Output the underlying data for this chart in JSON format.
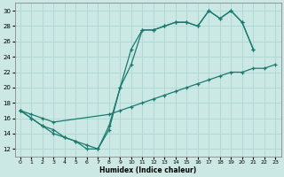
{
  "background_color": "#cce8e4",
  "grid_color": "#b0d8d4",
  "line_color": "#1a7a6e",
  "xlabel": "Humidex (Indice chaleur)",
  "xlim": [
    -0.5,
    23.5
  ],
  "ylim": [
    11,
    31
  ],
  "yticks": [
    12,
    14,
    16,
    18,
    20,
    22,
    24,
    26,
    28,
    30
  ],
  "xticks": [
    0,
    1,
    2,
    3,
    4,
    5,
    6,
    7,
    8,
    9,
    10,
    11,
    12,
    13,
    14,
    15,
    16,
    17,
    18,
    19,
    20,
    21,
    22,
    23
  ],
  "curves": [
    {
      "x": [
        0,
        1,
        2,
        3,
        4,
        5,
        6,
        7,
        8,
        9,
        10,
        11,
        12,
        13,
        14,
        15,
        16,
        17,
        18,
        19,
        20,
        21
      ],
      "y": [
        17,
        16,
        15,
        14,
        13.5,
        13,
        12,
        12,
        14.5,
        20,
        25,
        27.5,
        27.5,
        28,
        28.5,
        28.5,
        28,
        30,
        29,
        30,
        28.5,
        25
      ]
    },
    {
      "x": [
        0,
        1,
        2,
        3,
        4,
        5,
        6,
        7,
        8,
        9,
        10,
        11,
        12,
        13,
        14,
        15,
        16,
        17,
        18,
        19,
        20,
        21
      ],
      "y": [
        17,
        16,
        15,
        14.5,
        13.5,
        13,
        12.5,
        12,
        15,
        20,
        23,
        27.5,
        27.5,
        28,
        28.5,
        28.5,
        28,
        30,
        29,
        30,
        28.5,
        25
      ]
    },
    {
      "x": [
        0,
        1,
        2,
        3,
        8,
        9,
        10,
        11,
        12,
        13,
        14,
        15,
        16,
        17,
        18,
        19,
        20,
        21,
        22,
        23
      ],
      "y": [
        17,
        16.5,
        16,
        15.5,
        16.5,
        17,
        17.5,
        18,
        18.5,
        19,
        19.5,
        20,
        20.5,
        21,
        21.5,
        22,
        22,
        22.5,
        22.5,
        23
      ]
    }
  ]
}
